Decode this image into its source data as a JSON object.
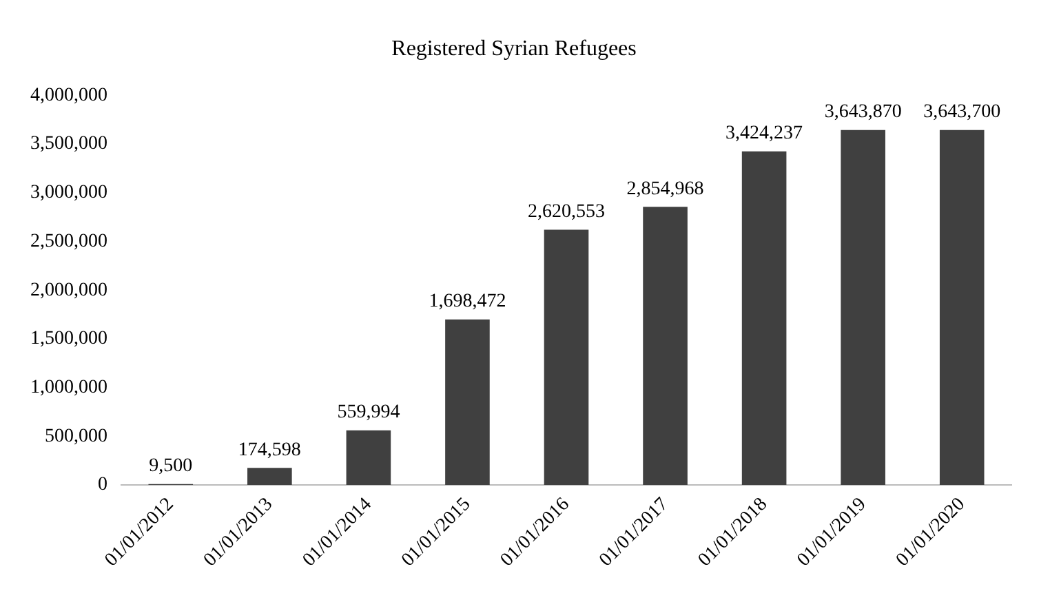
{
  "chart_data": {
    "type": "bar",
    "title": "Registered Syrian Refugees",
    "categories": [
      "01/01/2012",
      "01/01/2013",
      "01/01/2014",
      "01/01/2015",
      "01/01/2016",
      "01/01/2017",
      "01/01/2018",
      "01/01/2019",
      "01/01/2020"
    ],
    "values": [
      9500,
      174598,
      559994,
      1698472,
      2620553,
      2854968,
      3424237,
      3643870,
      3643700
    ],
    "value_labels": [
      "9,500",
      "174,598",
      "559,994",
      "1,698,472",
      "2,620,553",
      "2,854,968",
      "3,424,237",
      "3,643,870",
      "3,643,700"
    ],
    "color": "#404040",
    "ylim": [
      0,
      4000000
    ],
    "yticks": [
      0,
      {
        "value": 500000,
        "label": "500,000"
      },
      {
        "value": 1000000,
        "label": "1,000,000"
      },
      {
        "value": 1500000,
        "label": "1,500,000"
      },
      {
        "value": 2000000,
        "label": "2,000,000"
      },
      {
        "value": 2500000,
        "label": "2,500,000"
      },
      {
        "value": 3000000,
        "label": "3,000,000"
      },
      {
        "value": 3500000,
        "label": "3,500,000"
      },
      {
        "value": 4000000,
        "label": "4,000,000"
      }
    ],
    "grid": false,
    "legend": false
  }
}
